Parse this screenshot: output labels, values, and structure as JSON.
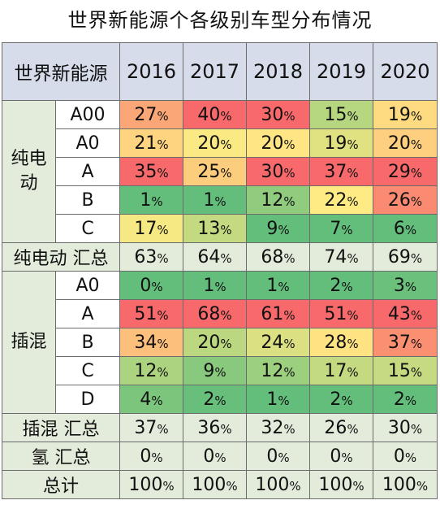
{
  "title": "世界新能源个各级别车型分布情况",
  "colors": {
    "header_bg": "#d6dcea",
    "label_bg": "#e3ecda",
    "grid": "#6b6b6b",
    "low": "#63be7b",
    "mid": "#ffeb84",
    "high": "#f8696b"
  },
  "chart_data": {
    "type": "heatmap",
    "title": "世界新能源个各级别车型分布情况",
    "corner_label": "世界新能源",
    "years": [
      "2016",
      "2017",
      "2018",
      "2019",
      "2020"
    ],
    "groups": [
      {
        "name": "纯电动",
        "rows": [
          {
            "label": "A00",
            "values": [
              "27%",
              "40%",
              "30%",
              "15%",
              "19%"
            ],
            "color_values": [
              27,
              40,
              30,
              15,
              19
            ]
          },
          {
            "label": "A0",
            "values": [
              "21%",
              "20%",
              "20%",
              "19%",
              "20%"
            ],
            "color_values": [
              21,
              20,
              20,
              19,
              20
            ]
          },
          {
            "label": "A",
            "values": [
              "35%",
              "25%",
              "30%",
              "37%",
              "29%"
            ],
            "color_values": [
              35,
              25,
              30,
              37,
              29
            ]
          },
          {
            "label": "B",
            "values": [
              "1%",
              "1%",
              "12%",
              "22%",
              "26%"
            ],
            "color_values": [
              1,
              1,
              12,
              22,
              26
            ]
          },
          {
            "label": "C",
            "values": [
              "17%",
              "13%",
              "9%",
              "7%",
              "6%"
            ],
            "color_values": [
              17,
              13,
              9,
              7,
              6
            ]
          }
        ],
        "total": {
          "label": "纯电动 汇总",
          "values": [
            "63%",
            "64%",
            "68%",
            "74%",
            "69%"
          ]
        }
      },
      {
        "name": "插混",
        "rows": [
          {
            "label": "A0",
            "values": [
              "0%",
              "1%",
              "1%",
              "2%",
              "3%"
            ],
            "color_values": [
              0,
              1,
              1,
              2,
              3
            ]
          },
          {
            "label": "A",
            "values": [
              "51%",
              "68%",
              "61%",
              "51%",
              "43%"
            ],
            "color_values": [
              51,
              68,
              61,
              51,
              43
            ]
          },
          {
            "label": "B",
            "values": [
              "34%",
              "20%",
              "24%",
              "28%",
              "37%"
            ],
            "color_values": [
              34,
              20,
              24,
              28,
              37
            ]
          },
          {
            "label": "C",
            "values": [
              "12%",
              "9%",
              "12%",
              "17%",
              "15%"
            ],
            "color_values": [
              12,
              9,
              12,
              17,
              15
            ]
          },
          {
            "label": "D",
            "values": [
              "4%",
              "2%",
              "1%",
              "2%",
              "2%"
            ],
            "color_values": [
              4,
              2,
              1,
              2,
              2
            ]
          }
        ],
        "total": {
          "label": "插混 汇总",
          "values": [
            "37%",
            "36%",
            "32%",
            "26%",
            "30%"
          ]
        }
      }
    ],
    "extra_rows": [
      {
        "label": "氢 汇总",
        "values": [
          "0%",
          "0%",
          "0%",
          "0%",
          "0%"
        ]
      },
      {
        "label": "总计",
        "values": [
          "100%",
          "100%",
          "100%",
          "100%",
          "100%"
        ]
      }
    ]
  }
}
